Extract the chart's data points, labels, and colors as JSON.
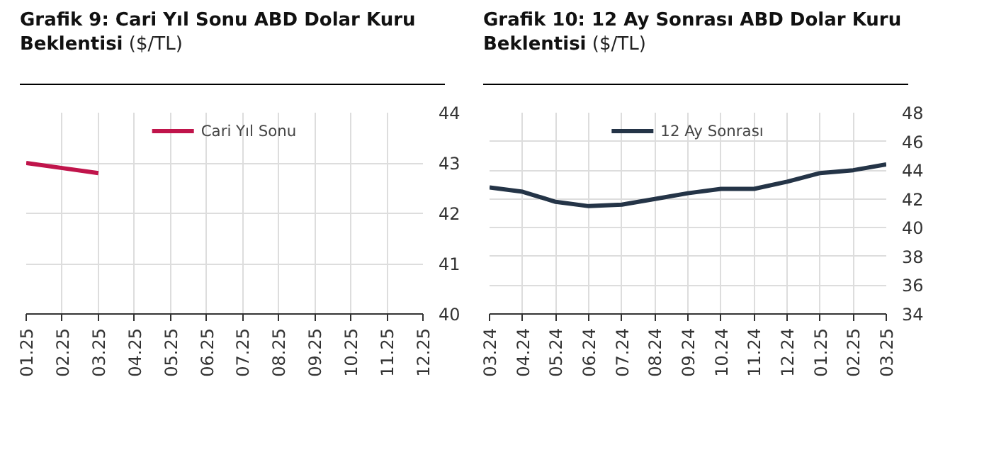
{
  "chart_data": [
    {
      "type": "line",
      "title": "Grafik 9: Cari Yıl Sonu ABD Dolar Kuru Beklentisi",
      "subtitle": "($/TL)",
      "categories": [
        "01.25",
        "02.25",
        "03.25",
        "04.25",
        "05.25",
        "06.25",
        "07.25",
        "08.25",
        "09.25",
        "10.25",
        "11.25",
        "12.25"
      ],
      "series": [
        {
          "name": "Cari Yıl Sonu",
          "color": "#c0144b",
          "values": [
            43.0,
            42.9,
            42.8,
            null,
            null,
            null,
            null,
            null,
            null,
            null,
            null,
            null
          ]
        }
      ],
      "ylim": [
        40,
        44
      ],
      "yticks": [
        40,
        41,
        42,
        43,
        44
      ],
      "grid": true,
      "legend": "top"
    },
    {
      "type": "line",
      "title": "Grafik 10: 12 Ay Sonrası ABD Dolar Kuru Beklentisi",
      "subtitle": "($/TL)",
      "categories": [
        "03.24",
        "04.24",
        "05.24",
        "06.24",
        "07.24",
        "08.24",
        "09.24",
        "10.24",
        "11.24",
        "12.24",
        "01.25",
        "02.25",
        "03.25"
      ],
      "series": [
        {
          "name": "12 Ay Sonrası",
          "color": "#243447",
          "values": [
            42.8,
            42.5,
            41.8,
            41.5,
            41.6,
            42.0,
            42.4,
            42.7,
            42.7,
            43.2,
            43.8,
            44.0,
            44.4
          ]
        }
      ],
      "ylim": [
        34,
        48
      ],
      "yticks": [
        34,
        36,
        38,
        40,
        42,
        44,
        46,
        48
      ],
      "grid": true,
      "legend": "top"
    }
  ]
}
